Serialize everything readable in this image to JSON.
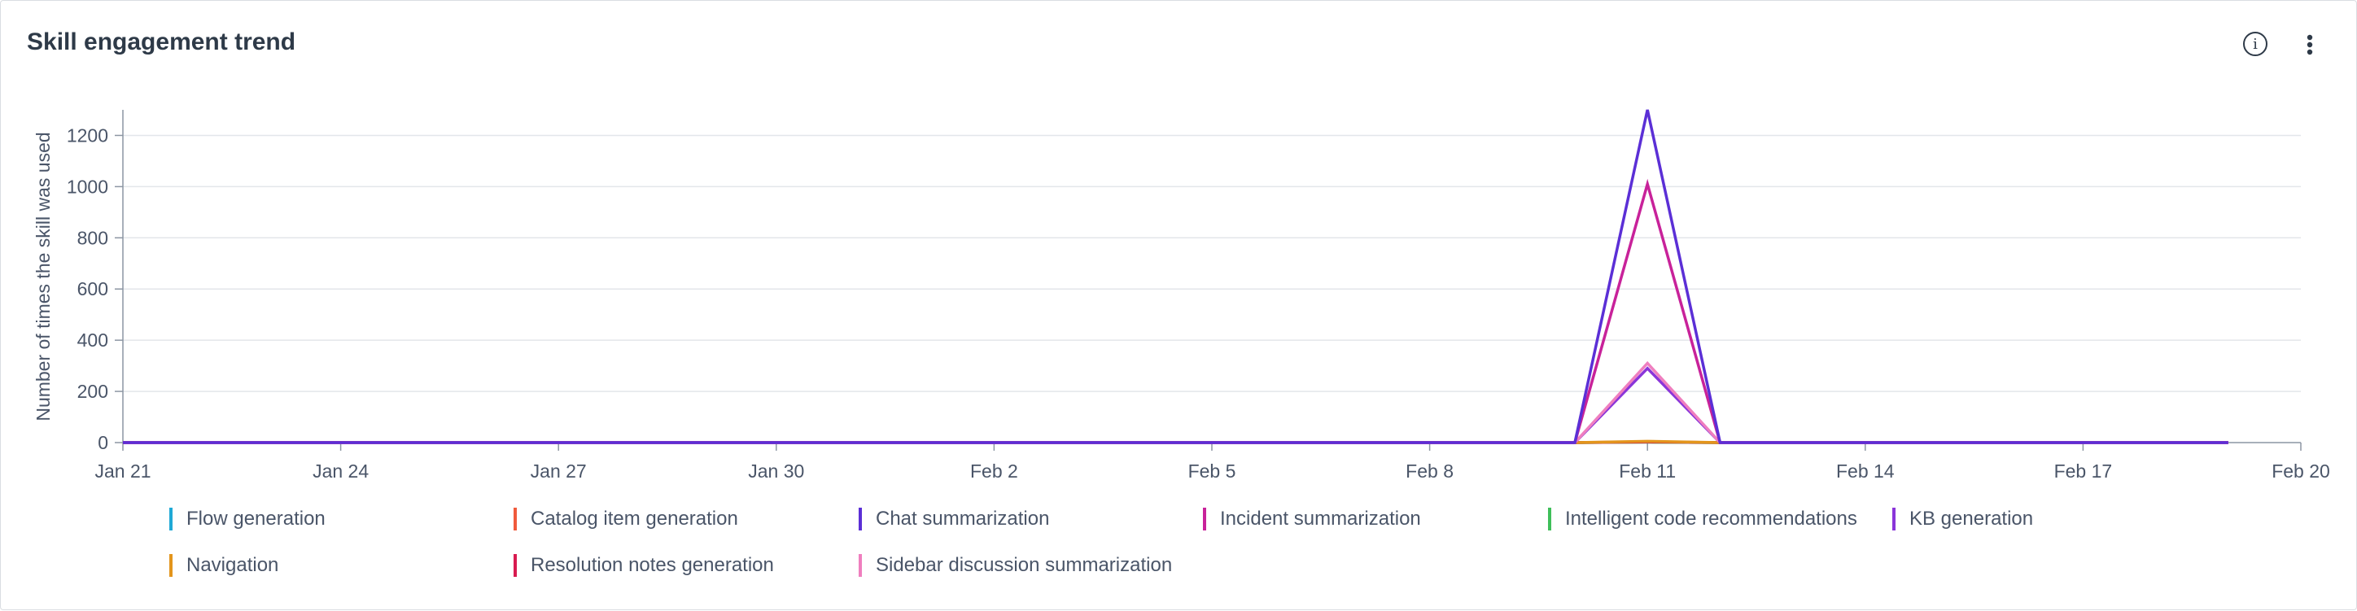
{
  "card": {
    "title": "Skill engagement trend",
    "info_icon": "info-icon",
    "more_icon": "more-vertical-icon"
  },
  "chart_data": {
    "type": "line",
    "ylabel": "Number of times the skill was used",
    "xlabel": "",
    "ylim": [
      0,
      1300
    ],
    "y_ticks": [
      0,
      200,
      400,
      600,
      800,
      1000,
      1200
    ],
    "x_range": [
      "Jan 21",
      "Feb 20"
    ],
    "x_tick_labels": [
      "Jan 21",
      "Jan 24",
      "Jan 27",
      "Jan 30",
      "Feb 2",
      "Feb 5",
      "Feb 8",
      "Feb 11",
      "Feb 14",
      "Feb 17",
      "Feb 20"
    ],
    "x": [
      "Jan 21",
      "Jan 22",
      "Jan 23",
      "Jan 24",
      "Jan 25",
      "Jan 26",
      "Jan 27",
      "Jan 28",
      "Jan 29",
      "Jan 30",
      "Jan 31",
      "Feb 1",
      "Feb 2",
      "Feb 3",
      "Feb 4",
      "Feb 5",
      "Feb 6",
      "Feb 7",
      "Feb 8",
      "Feb 9",
      "Feb 10",
      "Feb 11",
      "Feb 12",
      "Feb 13",
      "Feb 14",
      "Feb 15",
      "Feb 16",
      "Feb 17",
      "Feb 18",
      "Feb 19"
    ],
    "grid": true,
    "legend_position": "bottom",
    "series": [
      {
        "name": "Flow generation",
        "color": "#1fa9d6",
        "values": [
          0,
          0,
          0,
          0,
          0,
          0,
          0,
          0,
          0,
          0,
          0,
          0,
          0,
          0,
          0,
          0,
          0,
          0,
          0,
          0,
          0,
          2,
          0,
          0,
          0,
          0,
          0,
          0,
          0,
          0
        ]
      },
      {
        "name": "Catalog item generation",
        "color": "#f05a3c",
        "values": [
          0,
          0,
          0,
          0,
          0,
          0,
          0,
          0,
          0,
          0,
          0,
          0,
          0,
          0,
          0,
          0,
          0,
          0,
          0,
          0,
          0,
          2,
          0,
          0,
          0,
          0,
          0,
          0,
          0,
          0
        ]
      },
      {
        "name": "Chat summarization",
        "color": "#5b2fd6",
        "values": [
          0,
          0,
          0,
          0,
          0,
          0,
          0,
          0,
          0,
          0,
          0,
          0,
          0,
          0,
          0,
          0,
          0,
          0,
          0,
          0,
          0,
          1300,
          0,
          0,
          0,
          0,
          0,
          0,
          0,
          0
        ]
      },
      {
        "name": "Incident summarization",
        "color": "#c8229a",
        "values": [
          0,
          0,
          0,
          0,
          0,
          0,
          0,
          0,
          0,
          0,
          0,
          0,
          0,
          0,
          0,
          0,
          0,
          0,
          0,
          0,
          0,
          1010,
          0,
          0,
          0,
          0,
          0,
          0,
          0,
          0
        ]
      },
      {
        "name": "Intelligent code recommendations",
        "color": "#3fbf5a",
        "values": [
          0,
          0,
          0,
          0,
          0,
          0,
          0,
          0,
          0,
          0,
          0,
          0,
          0,
          0,
          0,
          0,
          0,
          0,
          0,
          0,
          0,
          2,
          0,
          0,
          0,
          0,
          0,
          0,
          0,
          0
        ]
      },
      {
        "name": "KB generation",
        "color": "#8a35d9",
        "values": [
          0,
          0,
          0,
          0,
          0,
          0,
          0,
          0,
          0,
          0,
          0,
          0,
          0,
          0,
          0,
          0,
          0,
          0,
          0,
          0,
          0,
          290,
          0,
          0,
          0,
          0,
          0,
          0,
          0,
          0
        ]
      },
      {
        "name": "Navigation",
        "color": "#e3951c",
        "values": [
          0,
          0,
          0,
          0,
          0,
          0,
          0,
          0,
          0,
          0,
          0,
          0,
          0,
          0,
          0,
          0,
          0,
          0,
          0,
          0,
          0,
          5,
          0,
          0,
          0,
          0,
          0,
          0,
          0,
          0
        ]
      },
      {
        "name": "Resolution notes generation",
        "color": "#d81b50",
        "values": [
          0,
          0,
          0,
          0,
          0,
          0,
          0,
          0,
          0,
          0,
          0,
          0,
          0,
          0,
          0,
          0,
          0,
          0,
          0,
          0,
          0,
          3,
          0,
          0,
          0,
          0,
          0,
          0,
          0,
          0
        ]
      },
      {
        "name": "Sidebar discussion summarization",
        "color": "#ef7fbf",
        "values": [
          0,
          0,
          0,
          0,
          0,
          0,
          0,
          0,
          0,
          0,
          0,
          0,
          0,
          0,
          0,
          0,
          0,
          0,
          0,
          0,
          0,
          310,
          0,
          0,
          0,
          0,
          0,
          0,
          0,
          0
        ]
      }
    ]
  }
}
